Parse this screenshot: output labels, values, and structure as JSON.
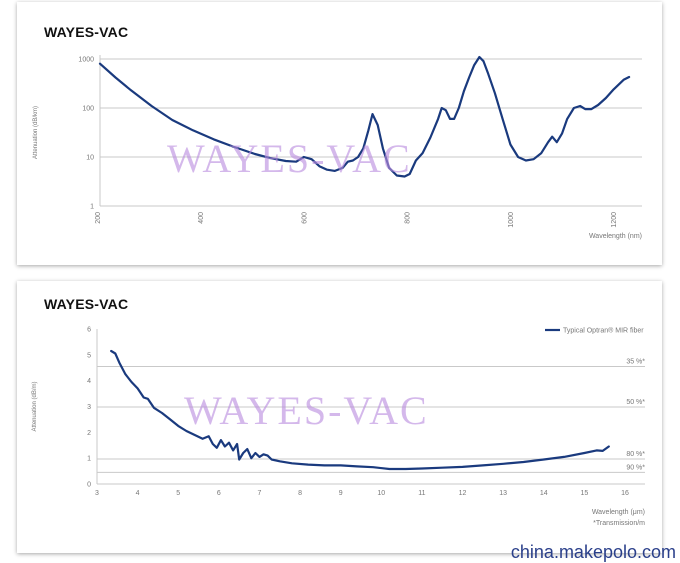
{
  "site_credit": "china.makepolo.com",
  "colors": {
    "curve": "#1a3a7e",
    "grid": "#c9c9c9",
    "watermark": "#ba8cde"
  },
  "chart_data": [
    {
      "type": "line",
      "brand": "WAYES-VAC",
      "watermark": "WAYES-VAC",
      "ylabel": "Attenuation (dB/km)",
      "xlabel": "Wavelength (nm)",
      "yscale": "log",
      "ylim": [
        1,
        1000
      ],
      "xlim": [
        200,
        1250
      ],
      "xticks": [
        200,
        400,
        600,
        800,
        1000,
        1200
      ],
      "xtick_labels": [
        "200",
        "400",
        "600",
        "800",
        "1000",
        "1200"
      ],
      "yticks": [
        1,
        10,
        100,
        1000
      ],
      "ytick_labels": [
        "1",
        "10",
        "100",
        "1000"
      ],
      "grid": "horizontal",
      "series": [
        {
          "x": [
            200,
            230,
            260,
            300,
            340,
            380,
            420,
            460,
            500,
            530,
            560,
            580,
            595,
            610,
            625,
            640,
            655,
            670,
            680,
            690,
            700,
            710,
            720,
            728,
            738,
            748,
            760,
            775,
            790,
            800,
            812,
            825,
            840,
            855,
            862,
            870,
            878,
            886,
            895,
            905,
            915,
            925,
            935,
            943,
            952,
            965,
            980,
            995,
            1010,
            1025,
            1040,
            1055,
            1068,
            1076,
            1085,
            1095,
            1105,
            1118,
            1130,
            1140,
            1152,
            1165,
            1180,
            1195,
            1215,
            1225
          ],
          "y": [
            800,
            420,
            230,
            110,
            57,
            35,
            23,
            16,
            11.5,
            9.5,
            8.3,
            8,
            10,
            9,
            6.5,
            5.5,
            5.2,
            6,
            8,
            8.5,
            10,
            15,
            35,
            75,
            45,
            15,
            6,
            4.2,
            4,
            4.5,
            8.5,
            12,
            25,
            60,
            100,
            90,
            60,
            60,
            100,
            220,
            420,
            750,
            1100,
            900,
            500,
            200,
            60,
            18,
            10,
            8.5,
            9,
            12,
            20,
            26,
            20,
            30,
            60,
            100,
            110,
            95,
            95,
            115,
            160,
            240,
            380,
            430
          ]
        }
      ]
    },
    {
      "type": "line",
      "brand": "WAYES-VAC",
      "watermark": "WAYES-VAC",
      "ylabel": "Attenuation (dB/m)",
      "xlabel": "Wavelength (μm)",
      "footnote": "*Transmission/m",
      "ylim": [
        0,
        6
      ],
      "xlim": [
        3,
        16
      ],
      "xticks": [
        3,
        4,
        5,
        6,
        7,
        8,
        9,
        10,
        11,
        12,
        13,
        14,
        15,
        16
      ],
      "xtick_labels": [
        "3",
        "4",
        "5",
        "6",
        "7",
        "8",
        "9",
        "10",
        "11",
        "12",
        "13",
        "14",
        "15",
        "16"
      ],
      "yticks": [
        0,
        1,
        2,
        3,
        4,
        5,
        6
      ],
      "ytick_labels": [
        "0",
        "1",
        "2",
        "3",
        "4",
        "5",
        "6"
      ],
      "legend": {
        "label": "Typical Optran® MIR fiber",
        "position": "top-right"
      },
      "reference_lines": [
        {
          "y": 4.55,
          "label": "35 %*"
        },
        {
          "y": 2.98,
          "label": "50 %*"
        },
        {
          "y": 0.97,
          "label": "80 %*"
        },
        {
          "y": 0.45,
          "label": "90 %*"
        }
      ],
      "series": [
        {
          "name": "Typical Optran® MIR fiber",
          "x": [
            3.35,
            3.45,
            3.55,
            3.7,
            3.85,
            4.0,
            4.15,
            4.25,
            4.4,
            4.6,
            4.8,
            5.0,
            5.2,
            5.4,
            5.6,
            5.75,
            5.85,
            5.95,
            6.05,
            6.15,
            6.25,
            6.35,
            6.45,
            6.5,
            6.6,
            6.7,
            6.8,
            6.9,
            7.0,
            7.1,
            7.2,
            7.3,
            7.5,
            7.8,
            8.2,
            8.6,
            9.0,
            9.4,
            9.8,
            10.2,
            10.6,
            11.0,
            11.5,
            12.0,
            12.5,
            13.0,
            13.5,
            14.0,
            14.5,
            15.0,
            15.3,
            15.45,
            15.6
          ],
          "y": [
            5.15,
            5.05,
            4.7,
            4.25,
            3.95,
            3.7,
            3.35,
            3.3,
            2.95,
            2.75,
            2.5,
            2.25,
            2.05,
            1.9,
            1.75,
            1.85,
            1.55,
            1.4,
            1.7,
            1.45,
            1.6,
            1.3,
            1.55,
            0.95,
            1.2,
            1.35,
            1.0,
            1.2,
            1.05,
            1.15,
            1.1,
            0.95,
            0.88,
            0.8,
            0.75,
            0.72,
            0.72,
            0.68,
            0.65,
            0.58,
            0.58,
            0.6,
            0.63,
            0.66,
            0.72,
            0.78,
            0.85,
            0.95,
            1.05,
            1.2,
            1.3,
            1.28,
            1.45
          ]
        }
      ]
    }
  ]
}
